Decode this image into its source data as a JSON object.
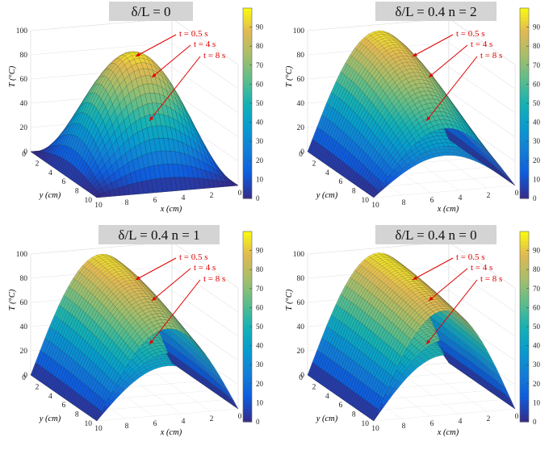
{
  "chart_data": [
    {
      "type": "surface",
      "title": "δ/L = 0",
      "zlabel": "T (°C)",
      "xlabel": "x (cm)",
      "ylabel": "y (cm)",
      "z_ticks": [
        0,
        20,
        40,
        60,
        80,
        100
      ],
      "y_ticks": [
        0,
        2,
        4,
        6,
        8,
        10
      ],
      "x_ticks": [
        0,
        2,
        4,
        6,
        8,
        10
      ],
      "colorbar_ticks": [
        0,
        10,
        20,
        30,
        40,
        50,
        60,
        70,
        80,
        90
      ],
      "colorbar_range": [
        0,
        100
      ],
      "annotations": [
        "t = 0.5 s",
        "t = 4 s",
        "t = 8 s"
      ],
      "surfaces": [
        {
          "time": "t = 0.5 s",
          "peak": 96
        },
        {
          "time": "t = 4 s",
          "peak": 70
        },
        {
          "time": "t = 8 s",
          "peak": 55
        }
      ]
    },
    {
      "type": "surface",
      "title": "δ/L = 0.4   n = 2",
      "zlabel": "T (°C)",
      "xlabel": "x (cm)",
      "ylabel": "y (cm)",
      "z_ticks": [
        0,
        20,
        40,
        60,
        80,
        100
      ],
      "y_ticks": [
        0,
        2,
        4,
        6,
        8,
        10
      ],
      "x_ticks": [
        0,
        2,
        4,
        6,
        8,
        10
      ],
      "colorbar_ticks": [
        0,
        10,
        20,
        30,
        40,
        50,
        60,
        70,
        80,
        90
      ],
      "colorbar_range": [
        0,
        100
      ],
      "annotations": [
        "t = 0.5 s",
        "t = 4 s",
        "t = 8 s"
      ],
      "surfaces": [
        {
          "time": "t = 0.5 s",
          "peak": 95
        },
        {
          "time": "t = 4 s",
          "peak": 68
        },
        {
          "time": "t = 8 s",
          "peak": 54
        }
      ]
    },
    {
      "type": "surface",
      "title": "δ/L = 0.4   n = 1",
      "zlabel": "T (°C)",
      "xlabel": "x (cm)",
      "ylabel": "y (cm)",
      "z_ticks": [
        0,
        20,
        40,
        60,
        80,
        100
      ],
      "y_ticks": [
        0,
        2,
        4,
        6,
        8,
        10
      ],
      "x_ticks": [
        0,
        2,
        4,
        6,
        8,
        10
      ],
      "colorbar_ticks": [
        0,
        10,
        20,
        30,
        40,
        50,
        60,
        70,
        80,
        90
      ],
      "colorbar_range": [
        0,
        100
      ],
      "annotations": [
        "t = 0.5 s",
        "t = 4 s",
        "t = 8 s"
      ],
      "surfaces": [
        {
          "time": "t = 0.5 s",
          "peak": 95
        },
        {
          "time": "t = 4 s",
          "peak": 68
        },
        {
          "time": "t = 8 s",
          "peak": 54
        }
      ]
    },
    {
      "type": "surface",
      "title": "δ/L = 0.4   n = 0",
      "zlabel": "T (°C)",
      "xlabel": "x (cm)",
      "ylabel": "y (cm)",
      "z_ticks": [
        0,
        20,
        40,
        60,
        80,
        100
      ],
      "y_ticks": [
        0,
        2,
        4,
        6,
        8,
        10
      ],
      "x_ticks": [
        0,
        2,
        4,
        6,
        8,
        10
      ],
      "colorbar_ticks": [
        0,
        10,
        20,
        30,
        40,
        50,
        60,
        70,
        80,
        90
      ],
      "colorbar_range": [
        0,
        100
      ],
      "annotations": [
        "t = 0.5 s",
        "t = 4 s",
        "t = 8 s"
      ],
      "surfaces": [
        {
          "time": "t = 0.5 s",
          "peak": 96
        },
        {
          "time": "t = 4 s",
          "peak": 69
        },
        {
          "time": "t = 8 s",
          "peak": 55
        }
      ]
    }
  ]
}
